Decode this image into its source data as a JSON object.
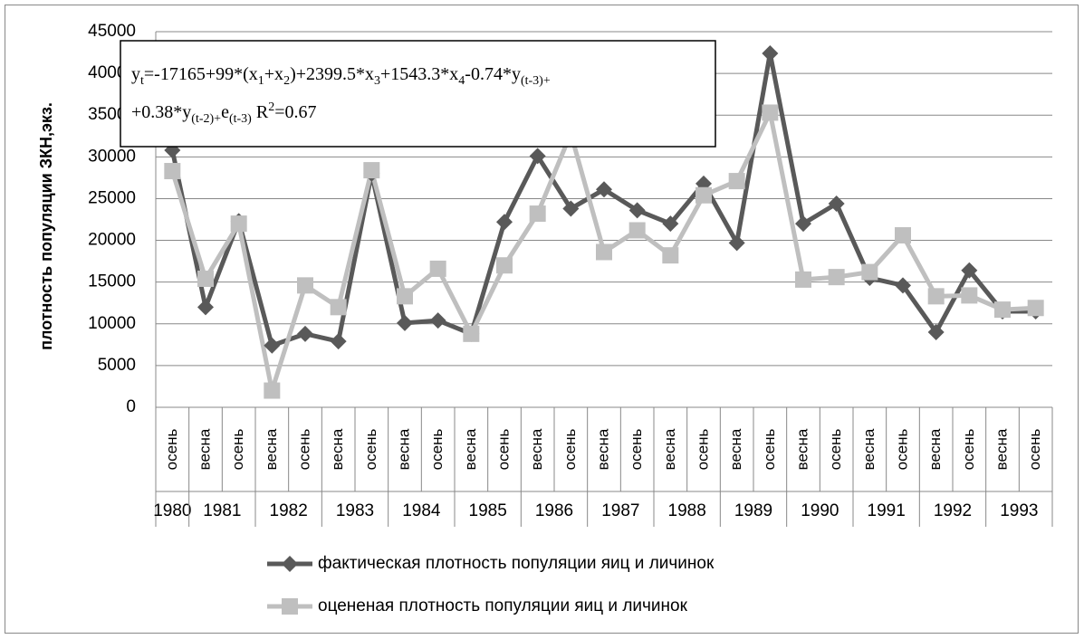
{
  "chart_data": {
    "type": "line",
    "y_label": "плотность популяции ЗКН,экз.",
    "categories": [
      "осень",
      "весна",
      "осень",
      "весна",
      "осень",
      "весна",
      "осень",
      "весна",
      "осень",
      "весна",
      "осень",
      "весна",
      "осень",
      "весна",
      "осень",
      "весна",
      "осень",
      "весна",
      "осень",
      "весна",
      "осень",
      "весна",
      "осень",
      "весна",
      "осень",
      "весна",
      "осень"
    ],
    "category_groups": [
      "1980",
      "1981",
      "1981",
      "1982",
      "1982",
      "1983",
      "1983",
      "1984",
      "1984",
      "1985",
      "1985",
      "1986",
      "1986",
      "1987",
      "1987",
      "1988",
      "1988",
      "1989",
      "1989",
      "1990",
      "1990",
      "1991",
      "1991",
      "1992",
      "1992",
      "1993",
      "1993"
    ],
    "series": [
      {
        "name": "фактическая плотность популяции яиц и личинок",
        "color": "#595959",
        "marker": "diamond",
        "values": [
          30800,
          12000,
          22300,
          7400,
          8800,
          7900,
          28000,
          10100,
          10400,
          8800,
          22200,
          30100,
          23800,
          26100,
          23600,
          22000,
          26800,
          19700,
          42400,
          22000,
          24400,
          15500,
          14600,
          9000,
          16400,
          11500,
          11500
        ]
      },
      {
        "name": "оцененая плотность популяции яиц и личинок",
        "color": "#bfbfbf",
        "marker": "square",
        "values": [
          28300,
          15400,
          22000,
          2000,
          14600,
          12000,
          28400,
          13300,
          16600,
          8800,
          17000,
          23200,
          32800,
          18600,
          21200,
          18200,
          25400,
          27100,
          35300,
          15300,
          15600,
          16200,
          20600,
          13300,
          13400,
          11700,
          11900
        ]
      }
    ],
    "ylim": [
      0,
      45000
    ],
    "yticks": [
      0,
      5000,
      10000,
      15000,
      20000,
      25000,
      30000,
      35000,
      40000,
      45000
    ],
    "grid": true,
    "legend": "bottom",
    "annotation": {
      "lines": [
        [
          {
            "text": "y"
          },
          {
            "text": "t",
            "sub": true
          },
          {
            "text": "=-17165+99*(x"
          },
          {
            "text": "1",
            "sub": true
          },
          {
            "text": "+x"
          },
          {
            "text": "2",
            "sub": true
          },
          {
            "text": ")+2399.5*x"
          },
          {
            "text": "3",
            "sub": true
          },
          {
            "text": "+1543.3*x"
          },
          {
            "text": "4",
            "sub": true
          },
          {
            "text": "-0.74*y"
          },
          {
            "text": "(t-3)+",
            "sub": true
          }
        ],
        [
          {
            "text": "+0.38*y"
          },
          {
            "text": "(t-2)+",
            "sub": true
          },
          {
            "text": "e"
          },
          {
            "text": "(t-3)",
            "sub": true
          },
          {
            "text": " R"
          },
          {
            "text": "2",
            "sup": true
          },
          {
            "text": "=0.67"
          }
        ]
      ]
    }
  }
}
